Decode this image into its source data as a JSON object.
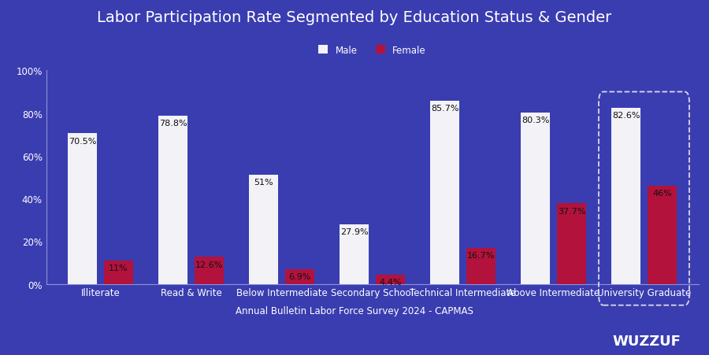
{
  "chart_data": {
    "type": "bar",
    "title": "Labor Participation Rate Segmented by Education Status & Gender",
    "categories": [
      "Illiterate",
      "Read & Write",
      "Below Intermediate",
      "Secondary School",
      "Technical Intermediate",
      "Above Intermediate",
      "University Graduate"
    ],
    "series": [
      {
        "name": "Male",
        "color": "#f2f2f7",
        "values": [
          70.5,
          78.8,
          51,
          27.9,
          85.7,
          80.3,
          82.6
        ],
        "value_labels": [
          "70.5%",
          "78.8%",
          "51%",
          "27.9%",
          "85.7%",
          "80.3%",
          "82.6%"
        ]
      },
      {
        "name": "Female",
        "color": "#b3123c",
        "values": [
          11,
          12.6,
          6.9,
          4.4,
          16.7,
          37.7,
          46
        ],
        "value_labels": [
          "11%",
          "12.6%",
          "6.9%",
          "4.4%",
          "16.7%",
          "37.7%",
          "46%"
        ]
      }
    ],
    "ylim": [
      0,
      100
    ],
    "yticks": [
      {
        "value": 0,
        "label": "0%"
      },
      {
        "value": 20,
        "label": "20%"
      },
      {
        "value": 40,
        "label": "40%"
      },
      {
        "value": 60,
        "label": "60%"
      },
      {
        "value": 80,
        "label": "80%"
      },
      {
        "value": 100,
        "label": "100%"
      }
    ],
    "grid": false,
    "legend": "upper center",
    "data_labels": true,
    "annotations": [
      "Annual Bulletin Labor Force Survey 2024 - CAPMAS",
      "WUZZUF"
    ]
  }
}
